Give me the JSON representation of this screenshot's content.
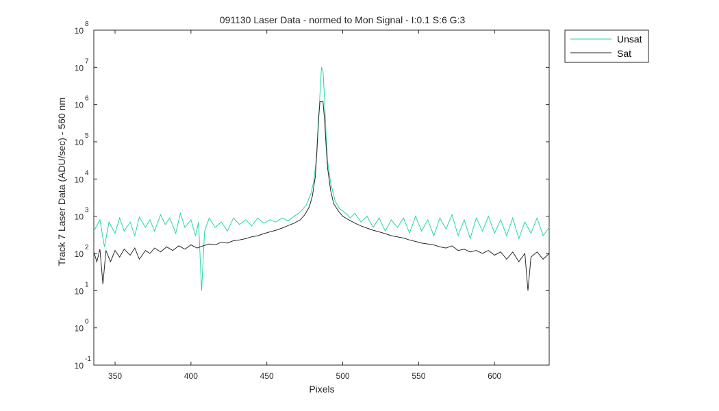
{
  "chart_data": {
    "type": "line",
    "title": "091130 Laser Data - normed to Mon Signal -   I:0.1  S:6  G:3",
    "xlabel": "Pixels",
    "ylabel": "Track 7 Laser Data (ADU/sec) - 560 nm",
    "xlim": [
      336,
      636
    ],
    "ylim": [
      0.1,
      100000000
    ],
    "yscale": "log",
    "grid": false,
    "legend_position": "outside-top-right",
    "x_ticks": [
      350,
      400,
      450,
      500,
      550,
      600
    ],
    "y_ticks": [
      {
        "base": "10",
        "exp": "-1",
        "value": 0.1
      },
      {
        "base": "10",
        "exp": "0",
        "value": 1
      },
      {
        "base": "10",
        "exp": "1",
        "value": 10
      },
      {
        "base": "10",
        "exp": "2",
        "value": 100
      },
      {
        "base": "10",
        "exp": "3",
        "value": 1000
      },
      {
        "base": "10",
        "exp": "4",
        "value": 10000
      },
      {
        "base": "10",
        "exp": "5",
        "value": 100000
      },
      {
        "base": "10",
        "exp": "6",
        "value": 1000000
      },
      {
        "base": "10",
        "exp": "7",
        "value": 10000000
      },
      {
        "base": "10",
        "exp": "8",
        "value": 100000000
      }
    ],
    "series": [
      {
        "name": "Unsat",
        "color": "#22d6a8",
        "points": [
          [
            336,
            400
          ],
          [
            340,
            800
          ],
          [
            343,
            150
          ],
          [
            346,
            700
          ],
          [
            350,
            350
          ],
          [
            353,
            900
          ],
          [
            356,
            400
          ],
          [
            360,
            700
          ],
          [
            363,
            300
          ],
          [
            366,
            950
          ],
          [
            370,
            500
          ],
          [
            373,
            800
          ],
          [
            376,
            400
          ],
          [
            380,
            1100
          ],
          [
            383,
            600
          ],
          [
            386,
            900
          ],
          [
            390,
            350
          ],
          [
            393,
            1200
          ],
          [
            396,
            500
          ],
          [
            400,
            800
          ],
          [
            403,
            300
          ],
          [
            405,
            700
          ],
          [
            407,
            10
          ],
          [
            409,
            400
          ],
          [
            412,
            900
          ],
          [
            416,
            500
          ],
          [
            420,
            700
          ],
          [
            424,
            400
          ],
          [
            428,
            900
          ],
          [
            432,
            600
          ],
          [
            436,
            800
          ],
          [
            440,
            550
          ],
          [
            444,
            900
          ],
          [
            448,
            650
          ],
          [
            452,
            800
          ],
          [
            456,
            700
          ],
          [
            460,
            900
          ],
          [
            464,
            750
          ],
          [
            468,
            1000
          ],
          [
            472,
            1300
          ],
          [
            476,
            2000
          ],
          [
            479,
            4000
          ],
          [
            481,
            9000
          ],
          [
            483,
            50000
          ],
          [
            484,
            300000
          ],
          [
            485,
            2000000
          ],
          [
            486,
            10000000
          ],
          [
            487,
            8000000
          ],
          [
            488,
            1500000
          ],
          [
            489,
            150000
          ],
          [
            490,
            30000
          ],
          [
            492,
            8000
          ],
          [
            495,
            2500
          ],
          [
            498,
            1600
          ],
          [
            502,
            1200
          ],
          [
            505,
            900
          ],
          [
            508,
            1200
          ],
          [
            512,
            700
          ],
          [
            516,
            1000
          ],
          [
            520,
            500
          ],
          [
            524,
            900
          ],
          [
            528,
            400
          ],
          [
            532,
            800
          ],
          [
            536,
            500
          ],
          [
            540,
            900
          ],
          [
            544,
            350
          ],
          [
            548,
            1000
          ],
          [
            552,
            400
          ],
          [
            556,
            800
          ],
          [
            560,
            300
          ],
          [
            564,
            900
          ],
          [
            568,
            450
          ],
          [
            572,
            1100
          ],
          [
            576,
            300
          ],
          [
            580,
            800
          ],
          [
            584,
            250
          ],
          [
            588,
            900
          ],
          [
            592,
            400
          ],
          [
            596,
            1000
          ],
          [
            600,
            350
          ],
          [
            604,
            800
          ],
          [
            608,
            300
          ],
          [
            612,
            900
          ],
          [
            616,
            250
          ],
          [
            620,
            700
          ],
          [
            624,
            350
          ],
          [
            628,
            900
          ],
          [
            632,
            300
          ],
          [
            636,
            500
          ]
        ]
      },
      {
        "name": "Sat",
        "color": "#262626",
        "points": [
          [
            336,
            110
          ],
          [
            338,
            60
          ],
          [
            340,
            130
          ],
          [
            342,
            15
          ],
          [
            344,
            120
          ],
          [
            347,
            60
          ],
          [
            350,
            120
          ],
          [
            353,
            80
          ],
          [
            356,
            130
          ],
          [
            360,
            90
          ],
          [
            363,
            140
          ],
          [
            366,
            70
          ],
          [
            370,
            120
          ],
          [
            373,
            100
          ],
          [
            376,
            140
          ],
          [
            380,
            110
          ],
          [
            384,
            150
          ],
          [
            388,
            120
          ],
          [
            392,
            160
          ],
          [
            396,
            130
          ],
          [
            400,
            170
          ],
          [
            404,
            140
          ],
          [
            408,
            160
          ],
          [
            412,
            180
          ],
          [
            416,
            170
          ],
          [
            420,
            200
          ],
          [
            424,
            190
          ],
          [
            428,
            220
          ],
          [
            432,
            230
          ],
          [
            436,
            250
          ],
          [
            440,
            280
          ],
          [
            444,
            300
          ],
          [
            448,
            340
          ],
          [
            452,
            380
          ],
          [
            456,
            420
          ],
          [
            460,
            480
          ],
          [
            464,
            560
          ],
          [
            468,
            650
          ],
          [
            472,
            800
          ],
          [
            475,
            1100
          ],
          [
            478,
            1800
          ],
          [
            480,
            3500
          ],
          [
            482,
            12000
          ],
          [
            483,
            60000
          ],
          [
            484,
            400000
          ],
          [
            485,
            1200000
          ],
          [
            487,
            1200000
          ],
          [
            488,
            400000
          ],
          [
            489,
            80000
          ],
          [
            490,
            20000
          ],
          [
            492,
            5000
          ],
          [
            494,
            2200
          ],
          [
            497,
            1400
          ],
          [
            500,
            1000
          ],
          [
            504,
            800
          ],
          [
            508,
            650
          ],
          [
            512,
            550
          ],
          [
            516,
            480
          ],
          [
            520,
            420
          ],
          [
            524,
            380
          ],
          [
            528,
            340
          ],
          [
            532,
            300
          ],
          [
            536,
            280
          ],
          [
            540,
            260
          ],
          [
            544,
            230
          ],
          [
            548,
            210
          ],
          [
            552,
            190
          ],
          [
            556,
            180
          ],
          [
            560,
            170
          ],
          [
            564,
            150
          ],
          [
            568,
            140
          ],
          [
            572,
            160
          ],
          [
            576,
            120
          ],
          [
            580,
            130
          ],
          [
            584,
            110
          ],
          [
            588,
            120
          ],
          [
            592,
            100
          ],
          [
            596,
            120
          ],
          [
            600,
            90
          ],
          [
            604,
            110
          ],
          [
            608,
            70
          ],
          [
            612,
            110
          ],
          [
            616,
            60
          ],
          [
            620,
            100
          ],
          [
            622,
            10
          ],
          [
            624,
            80
          ],
          [
            628,
            110
          ],
          [
            632,
            70
          ],
          [
            636,
            100
          ]
        ]
      }
    ]
  }
}
